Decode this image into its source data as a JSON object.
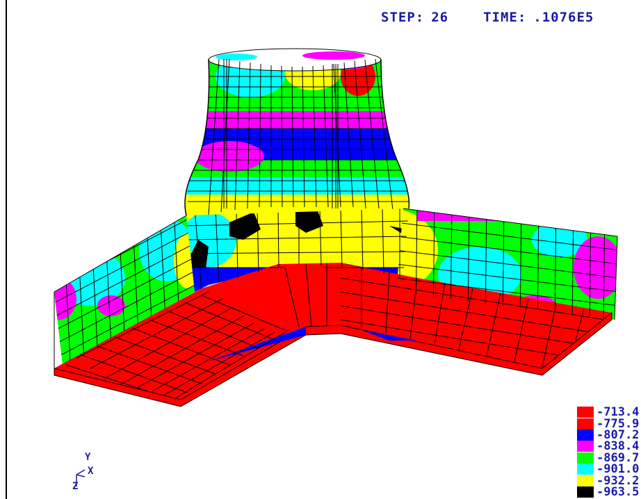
{
  "header": {
    "step_label": "STEP:",
    "step_value": "26",
    "time_label": "TIME:",
    "time_value": ".1076E5"
  },
  "legend": {
    "items": [
      {
        "color": "#ff0000",
        "value": "-713.4"
      },
      {
        "color": "#ff0000",
        "value": "-775.9"
      },
      {
        "color": "#0000ff",
        "value": "-807.2"
      },
      {
        "color": "#ff00ff",
        "value": "-838.4"
      },
      {
        "color": "#00ff00",
        "value": "-869.7"
      },
      {
        "color": "#00ffff",
        "value": "-901.0"
      },
      {
        "color": "#ffff00",
        "value": "-932.2"
      },
      {
        "color": "#000000",
        "value": "-963.5"
      }
    ]
  },
  "triad": {
    "y": "Y",
    "x": "X",
    "z": "Z"
  },
  "colors": {
    "label": "#1a1aa8",
    "mesh": "#000000"
  }
}
